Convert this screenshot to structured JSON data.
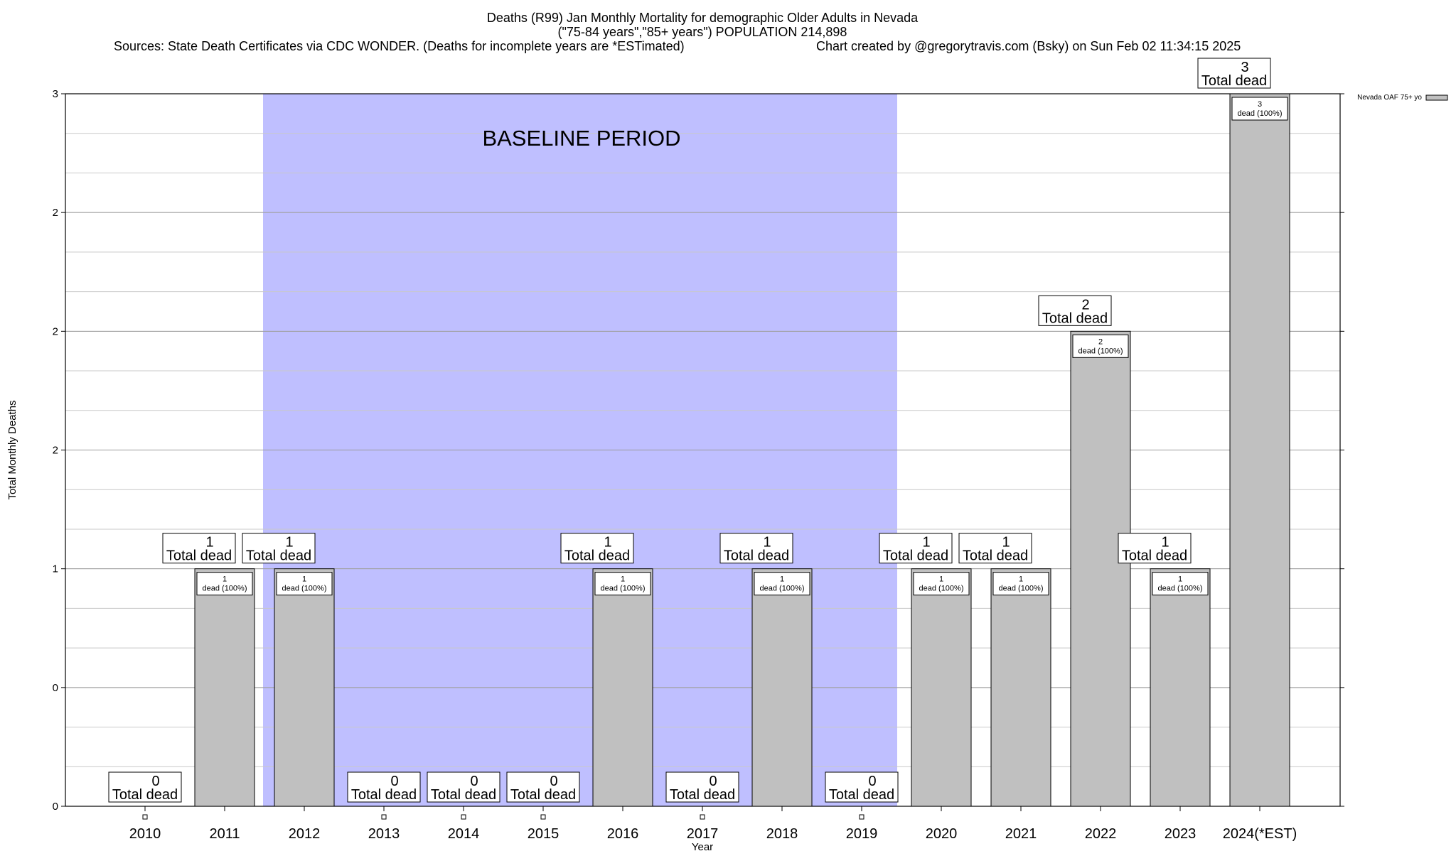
{
  "chart_data": {
    "type": "bar",
    "title_lines": [
      "Deaths (R99) Jan Monthly Mortality for demographic Older Adults in Nevada",
      "(\"75-84 years\",\"85+ years\") POPULATION 214,898"
    ],
    "source_text": "Sources: State Death Certificates via CDC WONDER. (Deaths for incomplete years are *ESTimated)",
    "credit_text": "Chart created by @gregorytravis.com (Bsky) on Sun Feb 02 11:34:15 2025",
    "xlabel": "Year",
    "ylabel": "Total Monthly Deaths",
    "categories": [
      "2010",
      "2011",
      "2012",
      "2013",
      "2014",
      "2015",
      "2016",
      "2017",
      "2018",
      "2019",
      "2020",
      "2021",
      "2022",
      "2023",
      "2024(*EST)"
    ],
    "series": [
      {
        "name": "Nevada OAF 75+ yo",
        "values": [
          0,
          1,
          1,
          0,
          0,
          0,
          1,
          0,
          1,
          0,
          1,
          1,
          2,
          1,
          3
        ]
      }
    ],
    "ylim": [
      0,
      3
    ],
    "y_ticks": [
      0,
      0.5,
      1,
      1.5,
      2,
      2.5,
      3
    ],
    "y_tick_labels": [
      "0",
      "0",
      "1",
      "2",
      "2",
      "2",
      "3"
    ],
    "total_label_suffix": "Total dead",
    "inner_label_suffix": "dead (100%)",
    "baseline": {
      "label": "BASELINE PERIOD",
      "start_category": "2012",
      "end_category": "2019"
    },
    "legend_position": "top-right",
    "grid": true,
    "colors": {
      "bar": "#c0c0c0",
      "baseline": "#bfbfff",
      "grid": "#c8c8c8"
    }
  }
}
